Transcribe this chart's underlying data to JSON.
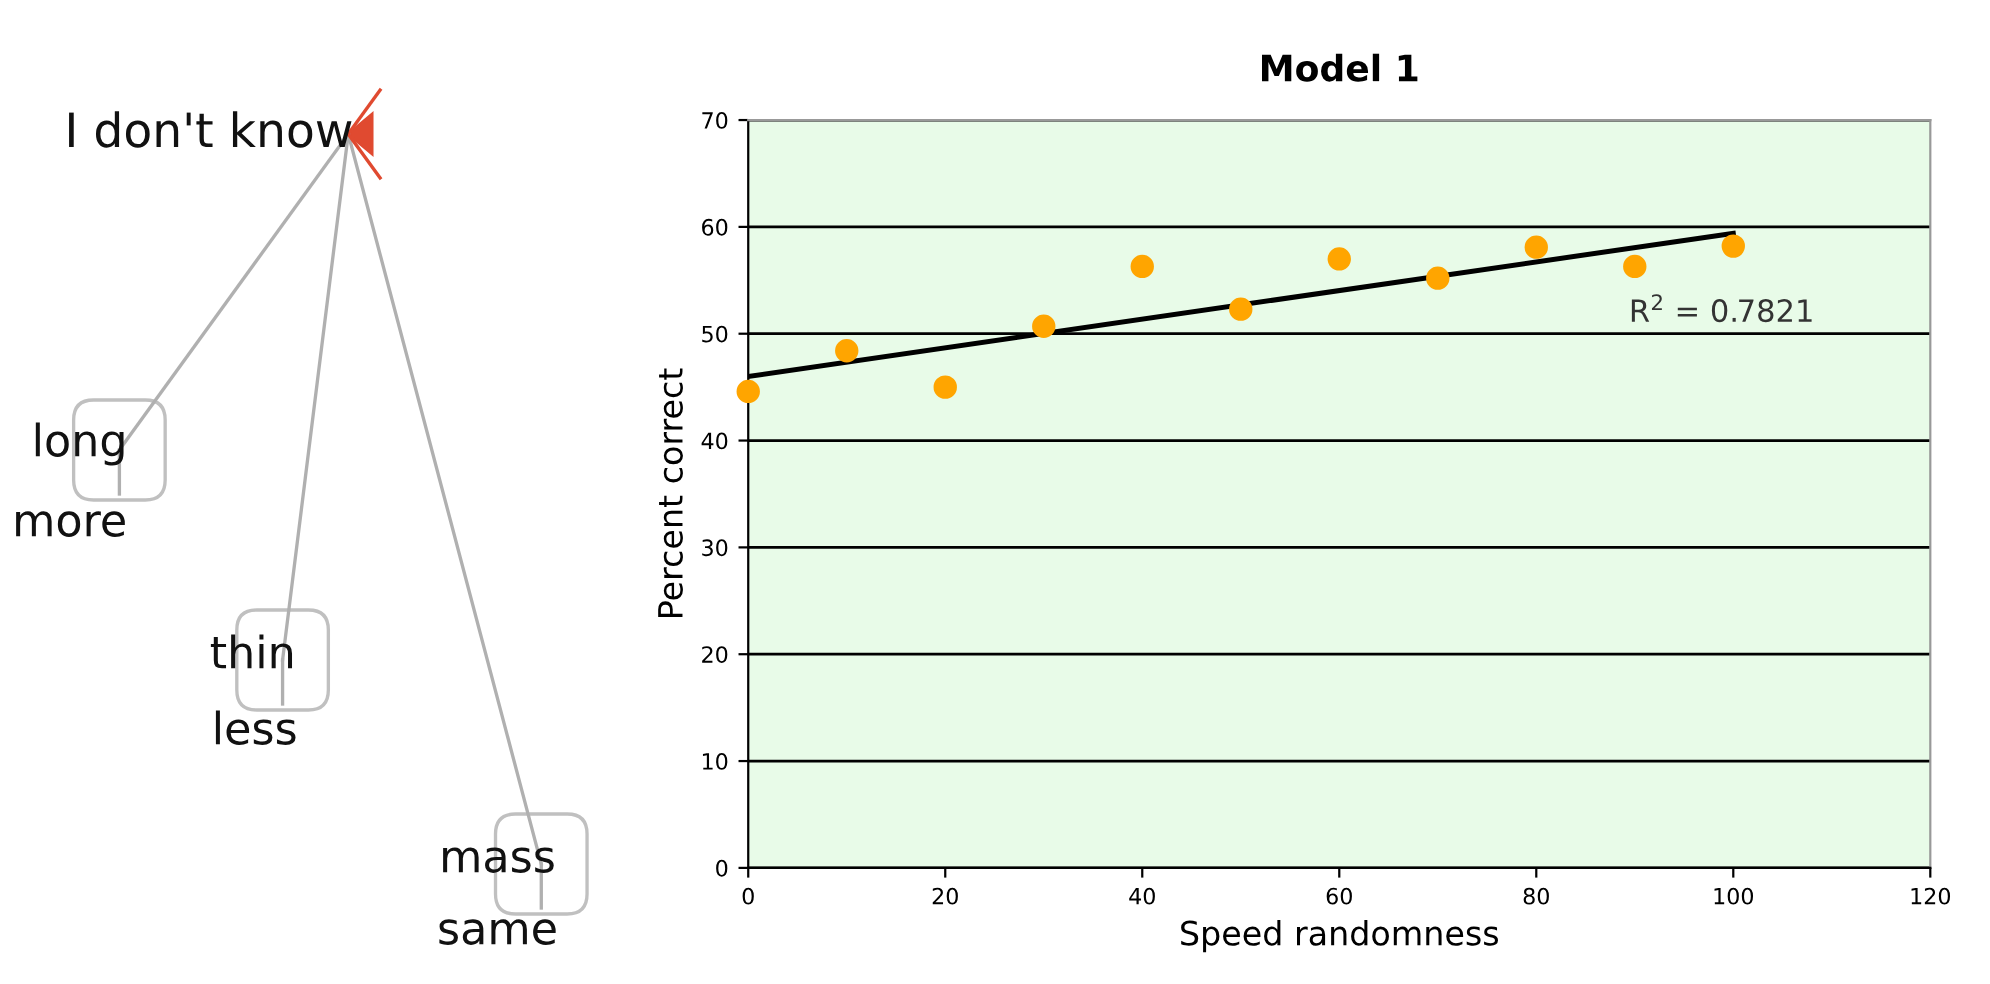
{
  "chart_data": [
    {
      "type": "other",
      "annotations": [
        "I don't know",
        "long",
        "more",
        "thin",
        "less",
        "mass",
        "same"
      ]
    },
    {
      "type": "scatter",
      "title": "Model 1",
      "xlabel": "Speed randomness",
      "ylabel": "Percent correct",
      "xlim": [
        0,
        120
      ],
      "xticks": [
        0,
        20,
        40,
        60,
        80,
        100,
        120
      ],
      "ylim": [
        0,
        70
      ],
      "yticks": [
        0,
        10,
        20,
        30,
        40,
        50,
        60,
        70
      ],
      "grid": "y",
      "series": [
        {
          "type": "scatter",
          "marker": "circle",
          "color": "#ffa500",
          "x": [
            0,
            10,
            20,
            30,
            40,
            50,
            60,
            70,
            80,
            90,
            100
          ],
          "values": [
            44.6,
            48.4,
            45.0,
            50.7,
            56.3,
            52.3,
            57.0,
            55.2,
            58.1,
            56.3,
            58.2
          ]
        },
        {
          "type": "line",
          "color": "#000000",
          "x": [
            0,
            100
          ],
          "values": [
            46.0,
            59.4
          ]
        }
      ],
      "annotations": [
        "R$^{2}$ = 0.7821"
      ]
    }
  ]
}
